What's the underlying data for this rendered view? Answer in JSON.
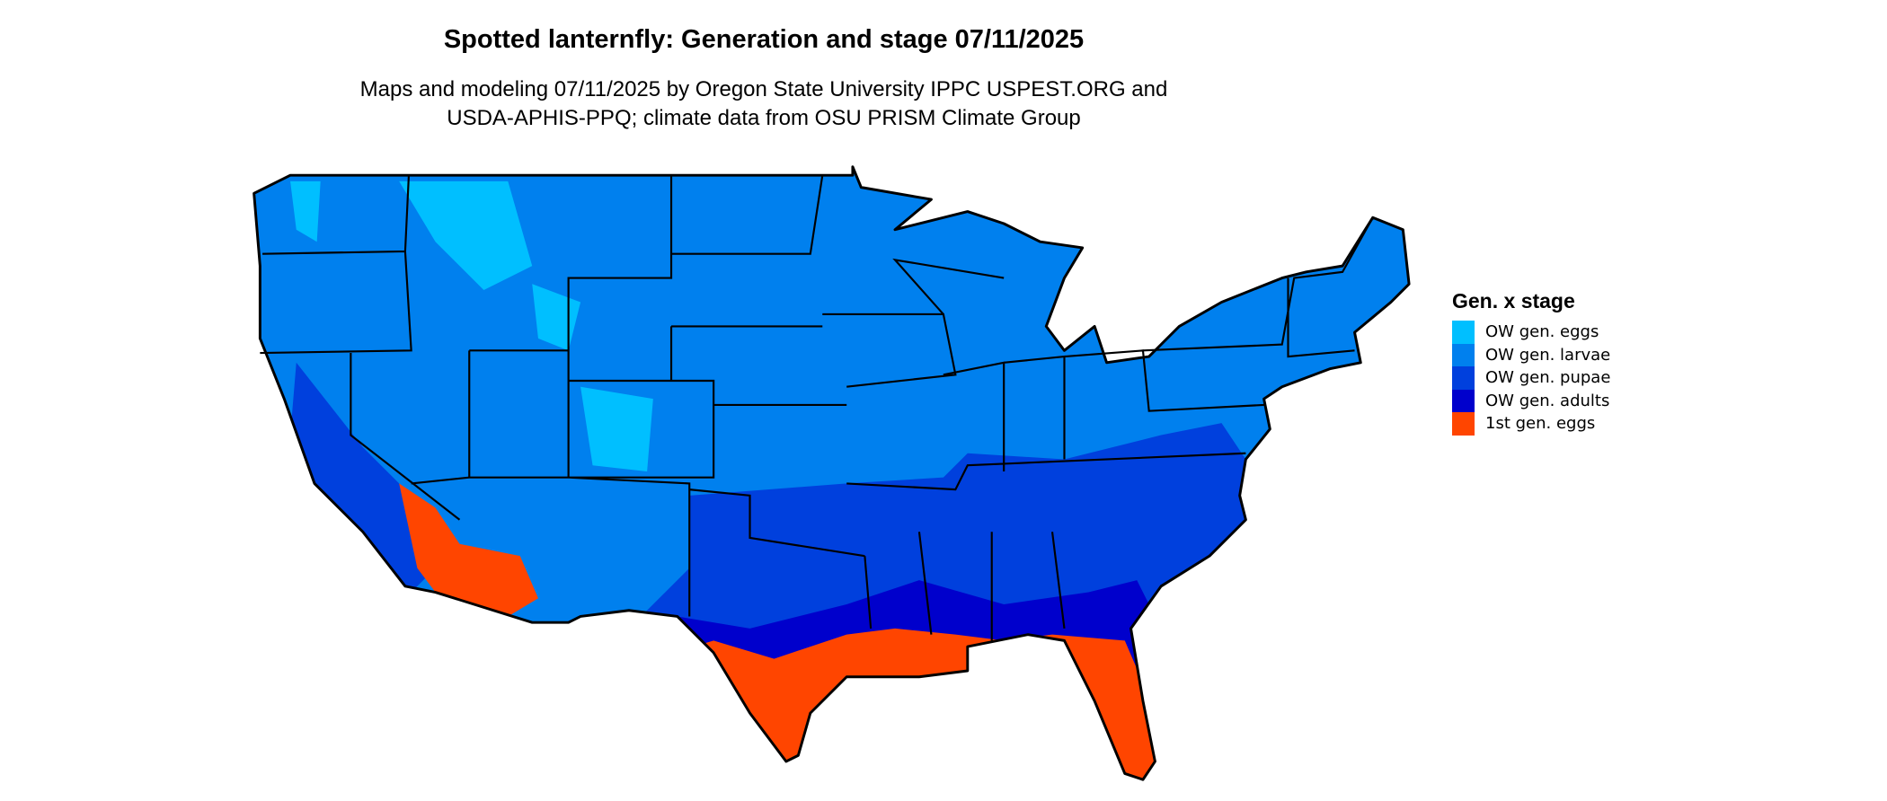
{
  "title": "Spotted lanternfly: Generation and stage 07/11/2025",
  "subtitle_line1": "Maps and modeling 07/11/2025 by Oregon State University IPPC USPEST.ORG and",
  "subtitle_line2": "USDA-APHIS-PPQ; climate data from OSU PRISM Climate Group",
  "legend": {
    "title": "Gen. x stage",
    "items": [
      {
        "label": "OW gen. eggs",
        "color": "#00BFFF"
      },
      {
        "label": "OW gen. larvae",
        "color": "#0080EE"
      },
      {
        "label": "OW gen. pupae",
        "color": "#0040DD"
      },
      {
        "label": "OW gen. adults",
        "color": "#0000CC"
      },
      {
        "label": "1st gen. eggs",
        "color": "#FF4500"
      }
    ]
  }
}
